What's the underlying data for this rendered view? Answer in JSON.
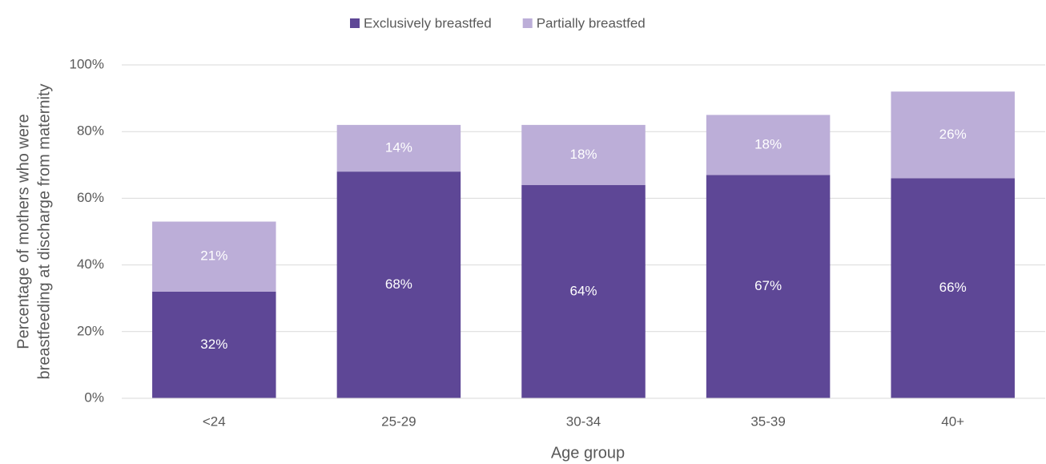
{
  "chart_data": {
    "type": "stacked_bar",
    "categories": [
      "<24",
      "25-29",
      "30-34",
      "35-39",
      "40+"
    ],
    "series": [
      {
        "name": "Exclusively breastfed",
        "color": "#5e4796",
        "values": [
          32,
          68,
          64,
          67,
          66
        ],
        "value_labels": [
          "32%",
          "68%",
          "64%",
          "67%",
          "66%"
        ]
      },
      {
        "name": "Partially breastfed",
        "color": "#bcaed8",
        "values": [
          21,
          14,
          18,
          18,
          26
        ],
        "value_labels": [
          "21%",
          "14%",
          "18%",
          "18%",
          "26%"
        ]
      }
    ],
    "ylim": [
      0,
      100
    ],
    "yticks": [
      {
        "value": 0,
        "label": "0%"
      },
      {
        "value": 20,
        "label": "20%"
      },
      {
        "value": 40,
        "label": "40%"
      },
      {
        "value": 60,
        "label": "60%"
      },
      {
        "value": 80,
        "label": "80%"
      },
      {
        "value": 100,
        "label": "100%"
      }
    ],
    "xlabel": "Age group",
    "ylabel": [
      "Percentage of mothers who were",
      "breastfeeding at discharge from maternity"
    ],
    "grid": true,
    "legend": "top"
  }
}
